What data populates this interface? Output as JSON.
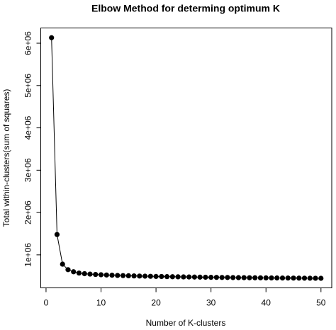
{
  "chart_data": {
    "type": "line",
    "title": "Elbow Method for determing optimum K",
    "xlabel": "Number of K-clusters",
    "ylabel": "Total within-clusters(sum of squares)",
    "x": [
      1,
      2,
      3,
      4,
      5,
      6,
      7,
      8,
      9,
      10,
      11,
      12,
      13,
      14,
      15,
      16,
      17,
      18,
      19,
      20,
      21,
      22,
      23,
      24,
      25,
      26,
      27,
      28,
      29,
      30,
      31,
      32,
      33,
      34,
      35,
      36,
      37,
      38,
      39,
      40,
      41,
      42,
      43,
      44,
      45,
      46,
      47,
      48,
      49,
      50
    ],
    "series": [
      {
        "color": "#000000",
        "values": [
          6130000,
          1480000,
          780000,
          650000,
          600000,
          570000,
          555000,
          545000,
          537000,
          530000,
          524000,
          519000,
          514000,
          510000,
          506000,
          502000,
          499000,
          496000,
          493000,
          490000,
          488000,
          485000,
          483000,
          481000,
          479000,
          477000,
          475000,
          473000,
          471000,
          469000,
          468000,
          466000,
          465000,
          463000,
          462000,
          461000,
          459000,
          458000,
          457000,
          456000,
          455000,
          454000,
          453000,
          452000,
          451000,
          450000,
          449000,
          448000,
          447000,
          446000
        ]
      }
    ],
    "xlim": [
      -0.96,
      51.96
    ],
    "ylim": [
      220000,
      6360000
    ],
    "xticks": [
      0,
      10,
      20,
      30,
      40,
      50
    ],
    "yticks": [
      {
        "value": 1000000,
        "label": "1e+06"
      },
      {
        "value": 2000000,
        "label": "2e+06"
      },
      {
        "value": 3000000,
        "label": "3e+06"
      },
      {
        "value": 4000000,
        "label": "4e+06"
      },
      {
        "value": 5000000,
        "label": "5e+06"
      },
      {
        "value": 6000000,
        "label": "6e+06"
      }
    ],
    "grid": false
  }
}
